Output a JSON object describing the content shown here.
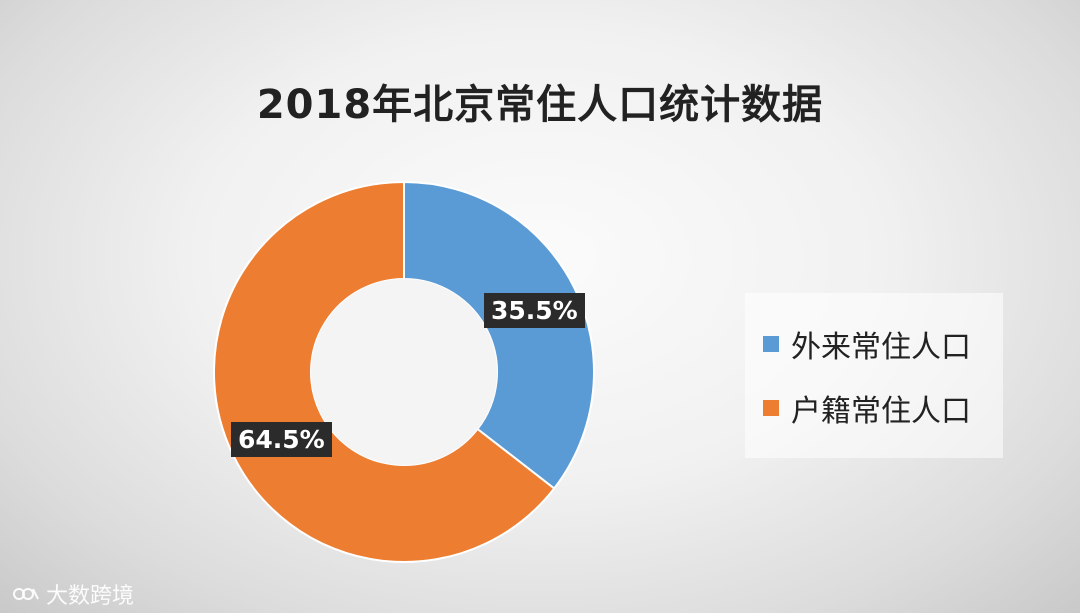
{
  "chart_data": {
    "type": "pie",
    "variant": "donut",
    "title": "2018年北京常住人口统计数据",
    "categories": [
      "外来常住人口",
      "户籍常住人口"
    ],
    "values": [
      35.5,
      64.5
    ],
    "unit": "%",
    "data_labels": [
      "35.5%",
      "64.5%"
    ],
    "colors": [
      "#5b9bd5",
      "#ed7d31"
    ],
    "legend_position": "right"
  },
  "watermark": {
    "text": "大数跨境",
    "icon": "dashuju-logo-icon"
  }
}
